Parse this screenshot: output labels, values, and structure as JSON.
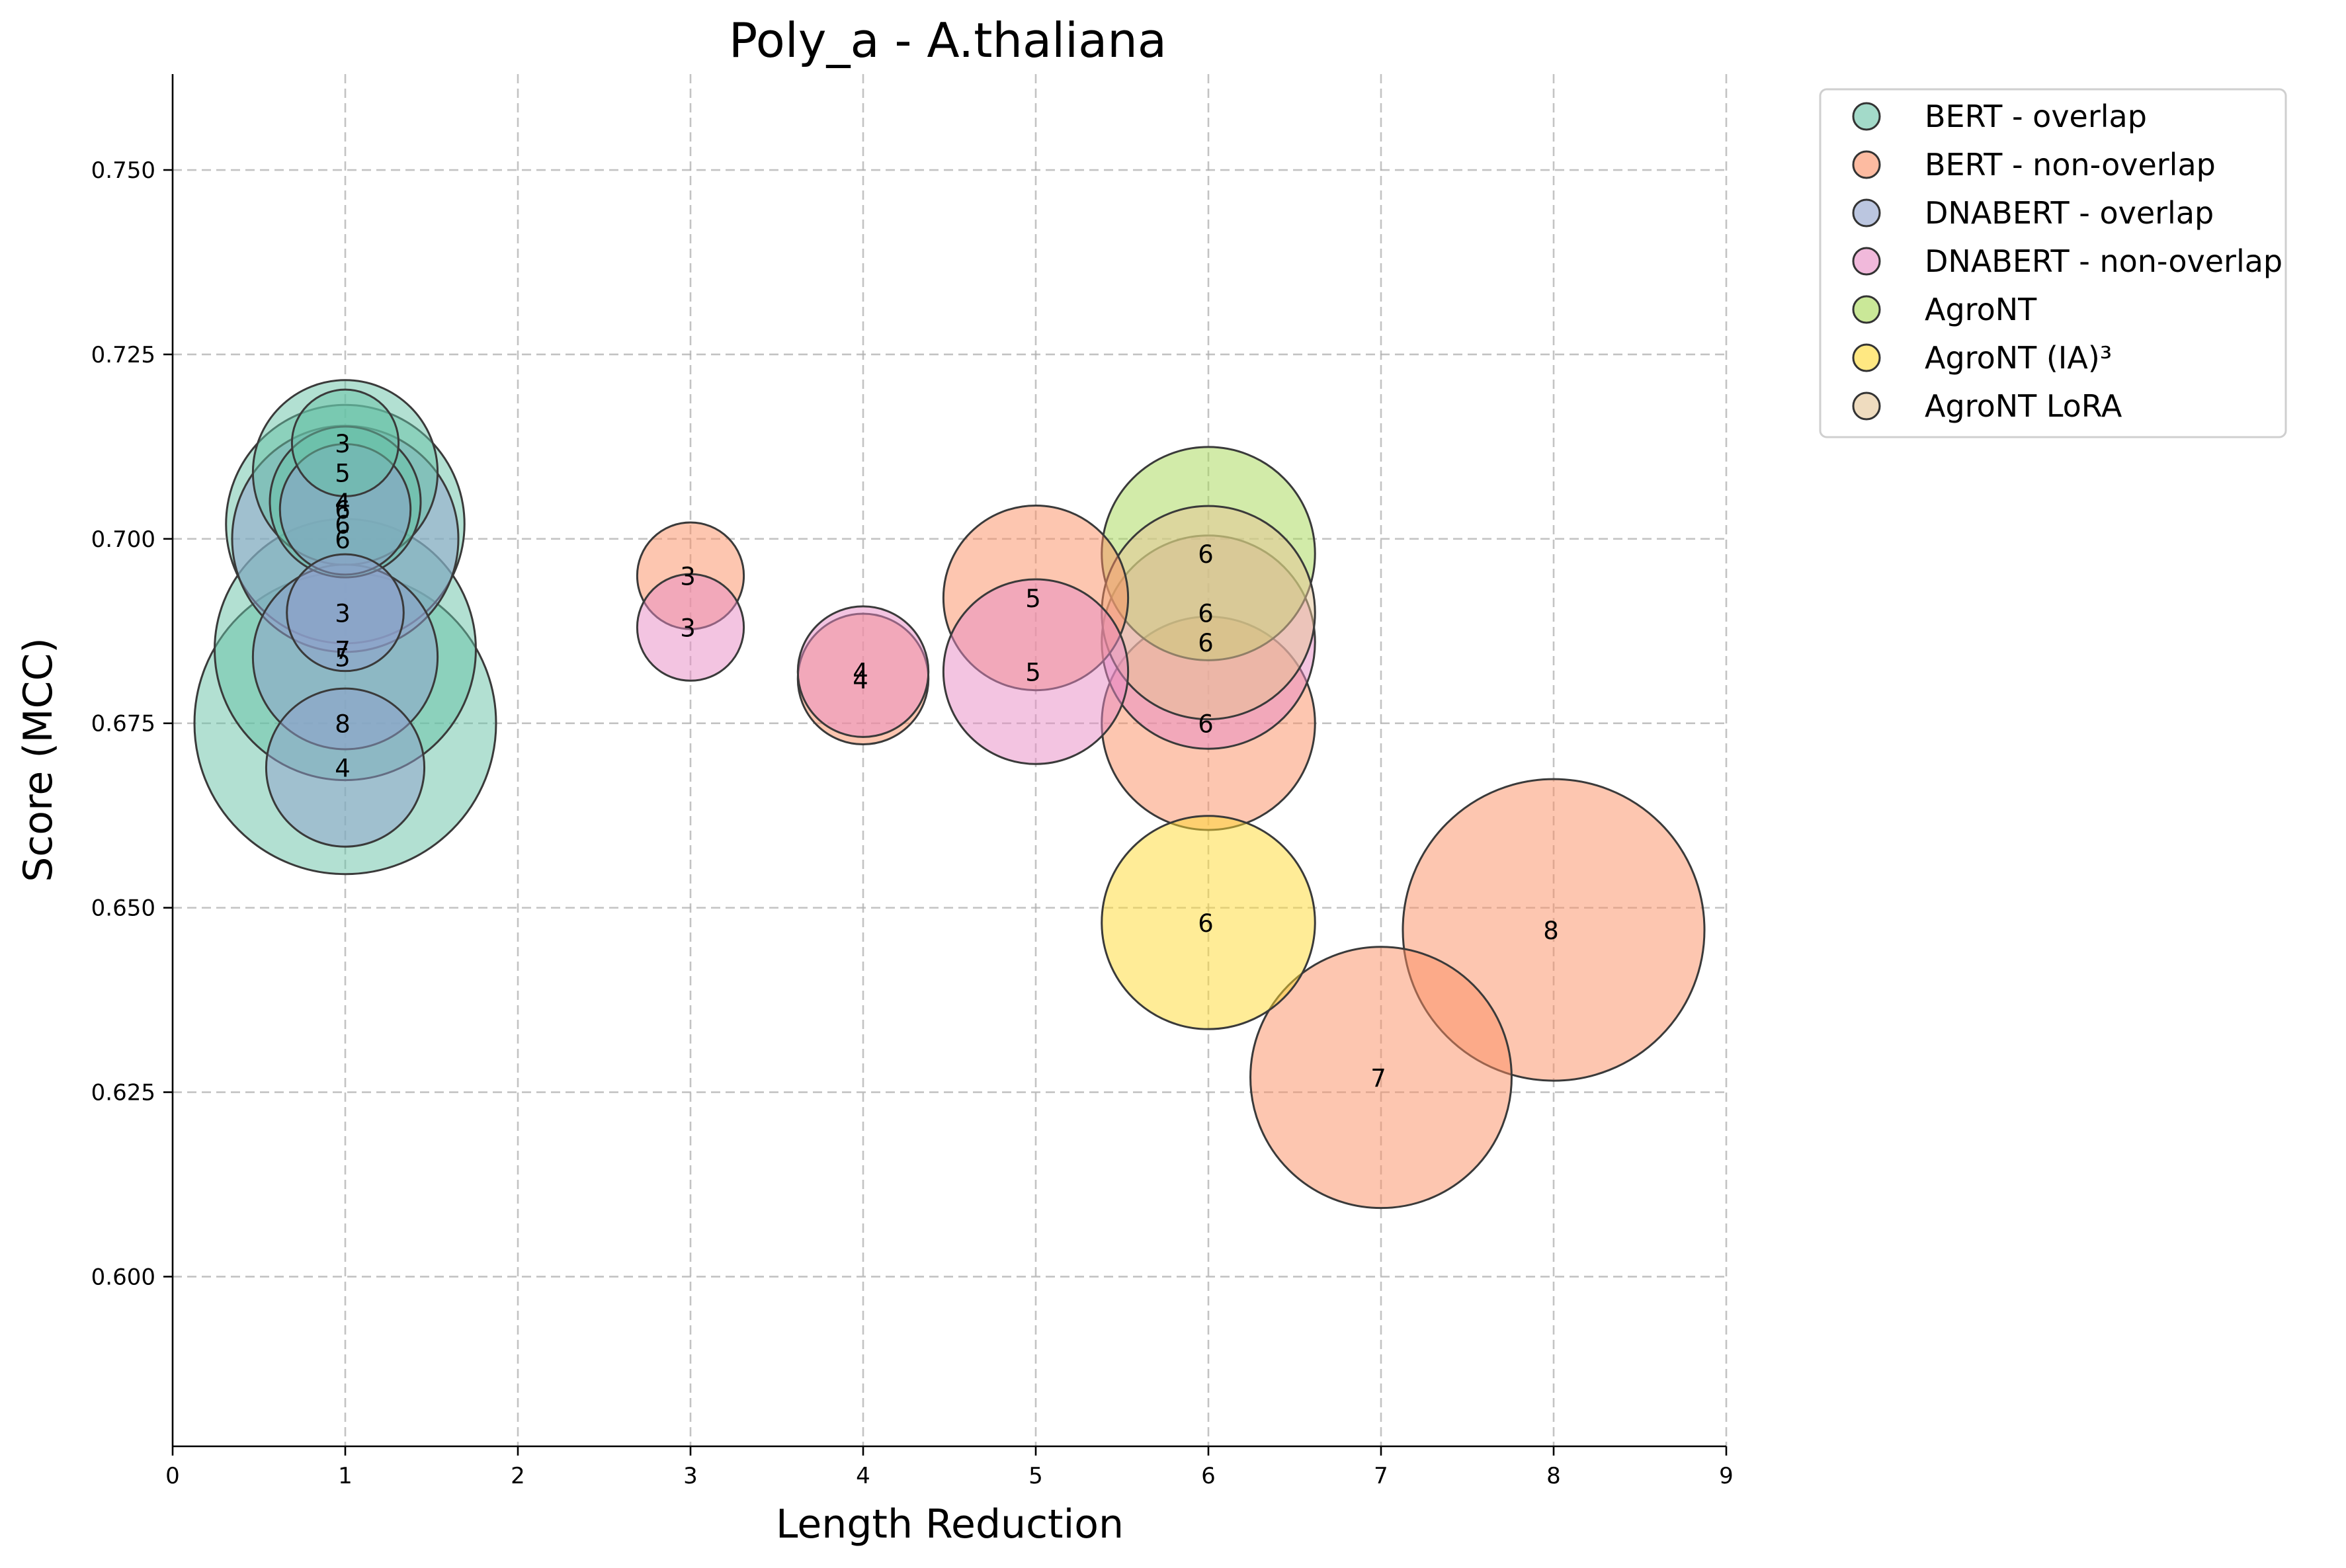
{
  "chart_data": {
    "type": "scatter",
    "title": "Poly_a - A.thaliana",
    "xlabel": "Length Reduction",
    "ylabel": "Score (MCC)",
    "xlim": [
      0,
      9
    ],
    "ylim": [
      0.577,
      0.763
    ],
    "xticks": [
      "0",
      "1",
      "2",
      "3",
      "4",
      "5",
      "6",
      "7",
      "8",
      "9"
    ],
    "yticks": [
      "0.600",
      "0.625",
      "0.650",
      "0.675",
      "0.700",
      "0.725",
      "0.750"
    ],
    "grid": true,
    "legend_position": "outside-top-right",
    "series": [
      {
        "name": "BERT - overlap",
        "color": "#66c2a5",
        "points": [
          {
            "x": 1,
            "y": 0.713,
            "label": "3",
            "size": 1
          },
          {
            "x": 1,
            "y": 0.709,
            "label": "5",
            "size": 3
          },
          {
            "x": 1,
            "y": 0.705,
            "label": "4",
            "size": 2
          },
          {
            "x": 1,
            "y": 0.702,
            "label": "6",
            "size": 5
          },
          {
            "x": 1,
            "y": 0.685,
            "label": "7",
            "size": 6
          },
          {
            "x": 1,
            "y": 0.675,
            "label": "8",
            "size": 8
          }
        ]
      },
      {
        "name": "BERT - non-overlap",
        "color": "#fc8d62",
        "points": [
          {
            "x": 3,
            "y": 0.695,
            "label": "3",
            "size": 1
          },
          {
            "x": 4,
            "y": 0.681,
            "label": "4",
            "size": 1.5
          },
          {
            "x": 5,
            "y": 0.692,
            "label": "5",
            "size": 3
          },
          {
            "x": 6,
            "y": 0.675,
            "label": "6",
            "size": 4
          },
          {
            "x": 7,
            "y": 0.627,
            "label": "7",
            "size": 6
          },
          {
            "x": 8,
            "y": 0.647,
            "label": "8",
            "size": 8
          }
        ]
      },
      {
        "name": "DNABERT - overlap",
        "color": "#8da0cb",
        "points": [
          {
            "x": 1,
            "y": 0.704,
            "label": "6",
            "size": 1.5
          },
          {
            "x": 1,
            "y": 0.7,
            "label": "6",
            "size": 4.5
          },
          {
            "x": 1,
            "y": 0.69,
            "label": "3",
            "size": 1.2
          },
          {
            "x": 1,
            "y": 0.684,
            "label": "5",
            "size": 3
          },
          {
            "x": 1,
            "y": 0.669,
            "label": "4",
            "size": 2.2
          }
        ]
      },
      {
        "name": "DNABERT - non-overlap",
        "color": "#e78ac3",
        "points": [
          {
            "x": 3,
            "y": 0.688,
            "label": "3",
            "size": 1
          },
          {
            "x": 4,
            "y": 0.682,
            "label": "4",
            "size": 1.5
          },
          {
            "x": 5,
            "y": 0.682,
            "label": "5",
            "size": 3
          },
          {
            "x": 6,
            "y": 0.686,
            "label": "6",
            "size": 4
          }
        ]
      },
      {
        "name": "AgroNT",
        "color": "#a6d854",
        "points": [
          {
            "x": 6,
            "y": 0.698,
            "label": "6",
            "size": 4
          }
        ]
      },
      {
        "name": "AgroNT (IA)³",
        "color": "#ffd92f",
        "points": [
          {
            "x": 6,
            "y": 0.648,
            "label": "6",
            "size": 4
          }
        ]
      },
      {
        "name": "AgroNT LoRA",
        "color": "#e5c494",
        "points": [
          {
            "x": 6,
            "y": 0.69,
            "label": "6",
            "size": 4
          }
        ]
      }
    ]
  }
}
